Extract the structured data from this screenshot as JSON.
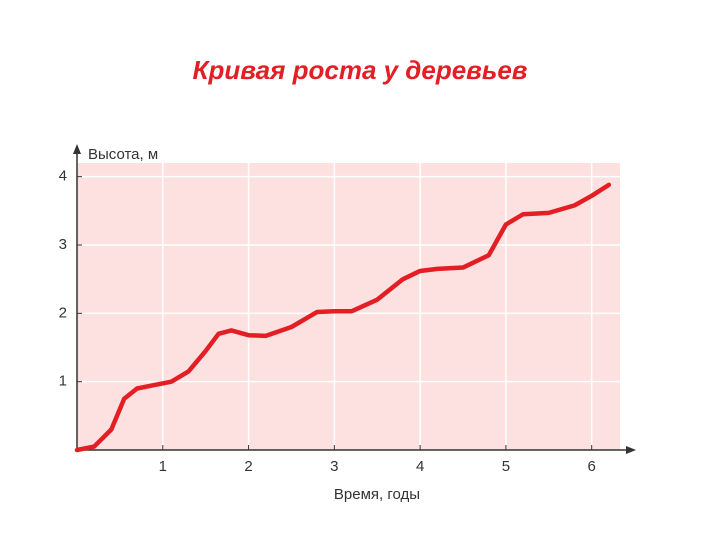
{
  "chart_data": {
    "type": "line",
    "title": "Кривая роста у деревьев",
    "y_label": "Высота, м",
    "x_label": "Время, годы",
    "x": [
      0,
      0.2,
      0.4,
      0.55,
      0.7,
      0.9,
      1.1,
      1.3,
      1.5,
      1.65,
      1.8,
      2.0,
      2.2,
      2.5,
      2.8,
      3.0,
      3.2,
      3.5,
      3.8,
      4.0,
      4.2,
      4.5,
      4.8,
      5.0,
      5.2,
      5.5,
      5.8,
      6.0,
      6.2
    ],
    "values": [
      0,
      0.05,
      0.3,
      0.75,
      0.9,
      0.95,
      1.0,
      1.15,
      1.45,
      1.7,
      1.75,
      1.68,
      1.67,
      1.8,
      2.02,
      2.03,
      2.03,
      2.2,
      2.5,
      2.62,
      2.65,
      2.67,
      2.85,
      3.3,
      3.45,
      3.47,
      3.58,
      3.72,
      3.88
    ],
    "color": "#e31e24",
    "background": "#fde0e0",
    "xlim": [
      0,
      6.33
    ],
    "ylim": [
      0,
      4.2
    ],
    "xticks": [
      1,
      2,
      3,
      4,
      5,
      6
    ],
    "yticks": [
      1,
      2,
      3,
      4
    ],
    "grid": true
  }
}
